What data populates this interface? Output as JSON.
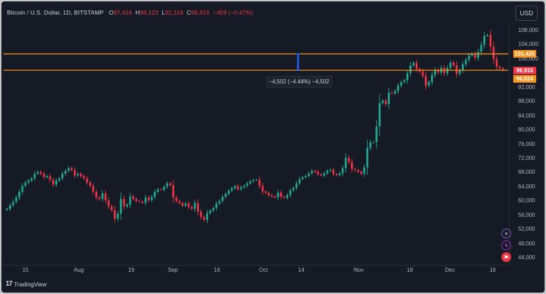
{
  "header": {
    "symbol": "Bitcoin / U.S. Dollar, 1D, BITSTAMP",
    "open_label": "O",
    "open_value": "97,416",
    "high_label": "H",
    "high_value": "98,123",
    "low_label": "L",
    "low_value": "92,118",
    "close_label": "C",
    "close_value": "96,916",
    "change": "−459 (−0.47%)"
  },
  "currency_button": "USD",
  "y_axis_ticks": [
    "108,000",
    "104,000",
    "100,000",
    "96,000",
    "92,000",
    "88,000",
    "84,000",
    "80,000",
    "76,000",
    "72,000",
    "68,000",
    "64,000",
    "60,000",
    "56,000",
    "52,000",
    "48,000",
    "44,000"
  ],
  "x_axis_ticks": [
    "15",
    "Aug",
    "19",
    "Sep",
    "16",
    "Oct",
    "14",
    "Nov",
    "18",
    "Dec",
    "16"
  ],
  "price_tags": [
    {
      "value": "101,435",
      "color": "#f7931a"
    },
    {
      "value": "96,916",
      "color": "#f23645"
    },
    {
      "value": "96,824",
      "color": "#f7931a"
    }
  ],
  "measure_label": "−4,502 (−4.44%) −4,502",
  "icons": {
    "plus": "plus-icon",
    "bolt": "bolt-icon",
    "flag": "flag-icon"
  },
  "brand": {
    "mark": "17",
    "name": "TradingView"
  },
  "colors": {
    "up": "#22ab94",
    "down": "#f23645",
    "level_line": "#f7931a",
    "measure": "#2962ff",
    "background": "#161a25",
    "text": "#d1d4dc"
  },
  "chart_data": {
    "type": "candlestick",
    "series": [
      {
        "name": "Bitcoin / U.S. Dollar, 1D, BITSTAMP",
        "values": [
          57800,
          58800,
          59800,
          61000,
          62600,
          64300,
          65200,
          65800,
          66400,
          67700,
          68200,
          67700,
          66700,
          67000,
          65900,
          64600,
          65800,
          66400,
          67700,
          68500,
          69300,
          68700,
          67200,
          67700,
          67000,
          66400,
          65200,
          64300,
          62600,
          61000,
          60600,
          62200,
          60200,
          58500,
          57500,
          55000,
          56500,
          60600,
          58500,
          59000,
          61300,
          60600,
          60000,
          59800,
          59500,
          61000,
          60200,
          61200,
          62600,
          63300,
          63200,
          64000,
          65000,
          64500,
          61000,
          60000,
          59400,
          58700,
          59300,
          58300,
          57800,
          59500,
          57000,
          55500,
          54700,
          56600,
          57300,
          58000,
          59300,
          60000,
          61200,
          62000,
          62900,
          63600,
          64200,
          63300,
          63900,
          64300,
          65000,
          65600,
          65900,
          66000,
          64300,
          62700,
          62300,
          61600,
          61300,
          61000,
          62400,
          61200,
          60900,
          61700,
          63000,
          63700,
          65000,
          66200,
          66700,
          67100,
          67800,
          68500,
          68200,
          67500,
          67200,
          67800,
          68500,
          68800,
          67600,
          67300,
          67800,
          69300,
          72200,
          71000,
          69000,
          68700,
          68200,
          67700,
          69500,
          75000,
          76500,
          76600,
          81000,
          87600,
          88300,
          87300,
          90500,
          90300,
          91000,
          92500,
          93500,
          94000,
          96000,
          98200,
          98900,
          97200,
          96500,
          95200,
          92500,
          93500,
          95500,
          97000,
          96200,
          97500,
          96000,
          97500,
          99000,
          98200,
          95800,
          96800,
          98500,
          99800,
          101000,
          101500,
          100300,
          102000,
          104000,
          106500,
          106800,
          103500,
          100000,
          97800,
          97400,
          96916
        ]
      }
    ],
    "x_ticks": [
      "15",
      "Aug",
      "19",
      "Sep",
      "16",
      "Oct",
      "14",
      "Nov",
      "18",
      "Dec",
      "16"
    ],
    "ylim": [
      44000,
      110000
    ],
    "y_ticks": [
      "108,000",
      "104,000",
      "100,000",
      "96,000",
      "92,000",
      "88,000",
      "84,000",
      "80,000",
      "76,000",
      "72,000",
      "68,000",
      "64,000",
      "60,000",
      "56,000",
      "52,000",
      "48,000",
      "44,000"
    ],
    "horizontal_levels": [
      101435,
      96824
    ],
    "measurement": {
      "from": 101435,
      "to": 96933,
      "label": "−4,502 (−4.44%) −4,502"
    },
    "grid": false
  }
}
